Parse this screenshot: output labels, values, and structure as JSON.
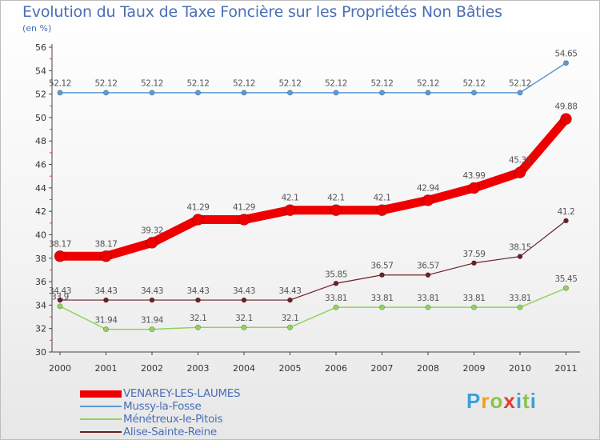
{
  "title": "Evolution du Taux de Taxe Foncière sur les Propriétés Non Bâties",
  "unit": "(en %)",
  "logo": {
    "text": "Proxiti",
    "letters": [
      "P",
      "r",
      "o",
      "x",
      "i",
      "t",
      "i"
    ],
    "colors": [
      "#3aa0d8",
      "#f39c1f",
      "#8bc34a",
      "#e53935",
      "#3aa0d8",
      "#8bc34a",
      "#3aa0d8"
    ]
  },
  "chart_data": {
    "type": "line",
    "title": "Evolution du Taux de Taxe Foncière sur les Propriétés Non Bâties",
    "ylabel": "(en %)",
    "xlabel": "",
    "ylim": [
      30,
      56
    ],
    "yticks": [
      30,
      32,
      34,
      36,
      38,
      40,
      42,
      44,
      46,
      48,
      50,
      52,
      54,
      56
    ],
    "categories": [
      "2000",
      "2001",
      "2002",
      "2003",
      "2004",
      "2005",
      "2006",
      "2007",
      "2008",
      "2009",
      "2010",
      "2011"
    ],
    "series": [
      {
        "name": "Mussy-la-Fosse",
        "color": "#5b9bd5",
        "values": [
          52.12,
          52.12,
          52.12,
          52.12,
          52.12,
          52.12,
          52.12,
          52.12,
          52.12,
          52.12,
          52.12,
          54.65
        ],
        "labels": [
          "52.12",
          "52.12",
          "52.12",
          "52.12",
          "52.12",
          "52.12",
          "52.12",
          "52.12",
          "52.12",
          "52.12",
          "52.12",
          "54.65"
        ]
      },
      {
        "name": "Ménétreux-le-Pitois",
        "color": "#8ed45a",
        "values": [
          33.9,
          31.94,
          31.94,
          32.1,
          32.1,
          32.1,
          33.81,
          33.81,
          33.81,
          33.81,
          33.81,
          35.45
        ],
        "labels": [
          "33.9",
          "31.94",
          "31.94",
          "32.1",
          "32.1",
          "32.1",
          "33.81",
          "33.81",
          "33.81",
          "33.81",
          "33.81",
          "35.45"
        ]
      },
      {
        "name": "Alise-Sainte-Reine",
        "color": "#6b1f26",
        "values": [
          34.43,
          34.43,
          34.43,
          34.43,
          34.43,
          34.43,
          35.85,
          36.57,
          36.57,
          37.59,
          38.15,
          41.2
        ],
        "labels": [
          "34.43",
          "34.43",
          "34.43",
          "34.43",
          "34.43",
          "34.43",
          "35.85",
          "36.57",
          "36.57",
          "37.59",
          "38.15",
          "41.2"
        ]
      },
      {
        "name": "VENAREY-LES-LAUMES",
        "color": "#ee0000",
        "values": [
          38.17,
          38.17,
          39.32,
          41.29,
          41.29,
          42.1,
          42.1,
          42.1,
          42.94,
          43.99,
          45.31,
          49.88
        ],
        "labels": [
          "38.17",
          "38.17",
          "39.32",
          "41.29",
          "41.29",
          "42.1",
          "42.1",
          "42.1",
          "42.94",
          "43.99",
          "45.31",
          "49.88"
        ]
      }
    ],
    "legend_order": [
      "VENAREY-LES-LAUMES",
      "Mussy-la-Fosse",
      "Ménétreux-le-Pitois",
      "Alise-Sainte-Reine"
    ],
    "legend_position": "bottom-left",
    "grid": false
  }
}
